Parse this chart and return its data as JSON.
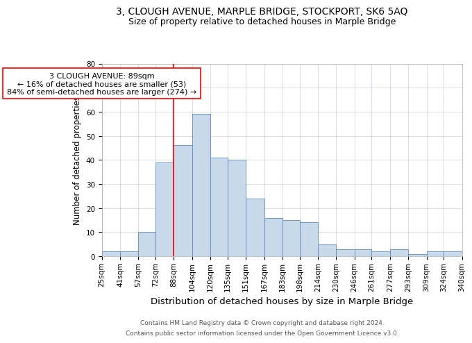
{
  "title_main": "3, CLOUGH AVENUE, MARPLE BRIDGE, STOCKPORT, SK6 5AQ",
  "title_sub": "Size of property relative to detached houses in Marple Bridge",
  "xlabel": "Distribution of detached houses by size in Marple Bridge",
  "ylabel": "Number of detached properties",
  "bin_labels": [
    "25sqm",
    "41sqm",
    "57sqm",
    "72sqm",
    "88sqm",
    "104sqm",
    "120sqm",
    "135sqm",
    "151sqm",
    "167sqm",
    "183sqm",
    "198sqm",
    "214sqm",
    "230sqm",
    "246sqm",
    "261sqm",
    "277sqm",
    "293sqm",
    "309sqm",
    "324sqm",
    "340sqm"
  ],
  "bin_edges": [
    25,
    41,
    57,
    72,
    88,
    104,
    120,
    135,
    151,
    167,
    183,
    198,
    214,
    230,
    246,
    261,
    277,
    293,
    309,
    324,
    340
  ],
  "bar_heights": [
    2,
    2,
    10,
    39,
    46,
    59,
    41,
    40,
    24,
    16,
    15,
    14,
    5,
    3,
    3,
    2,
    3,
    1,
    2,
    2
  ],
  "bar_facecolor": "#c9d9ec",
  "bar_edgecolor": "#5b8db8",
  "property_line_x": 88,
  "property_line_color": "red",
  "annotation_line1": "3 CLOUGH AVENUE: 89sqm",
  "annotation_line2": "← 16% of detached houses are smaller (53)",
  "annotation_line3": "84% of semi-detached houses are larger (274) →",
  "annotation_box_color": "white",
  "annotation_box_edgecolor": "red",
  "ylim": [
    0,
    80
  ],
  "yticks": [
    0,
    10,
    20,
    30,
    40,
    50,
    60,
    70,
    80
  ],
  "grid_color": "#d0d8e4",
  "background_color": "white",
  "footer_line1": "Contains HM Land Registry data © Crown copyright and database right 2024.",
  "footer_line2": "Contains public sector information licensed under the Open Government Licence v3.0.",
  "title_fontsize": 10,
  "subtitle_fontsize": 9,
  "xlabel_fontsize": 9.5,
  "ylabel_fontsize": 8.5,
  "tick_fontsize": 7.5,
  "annotation_fontsize": 8,
  "footer_fontsize": 6.5
}
